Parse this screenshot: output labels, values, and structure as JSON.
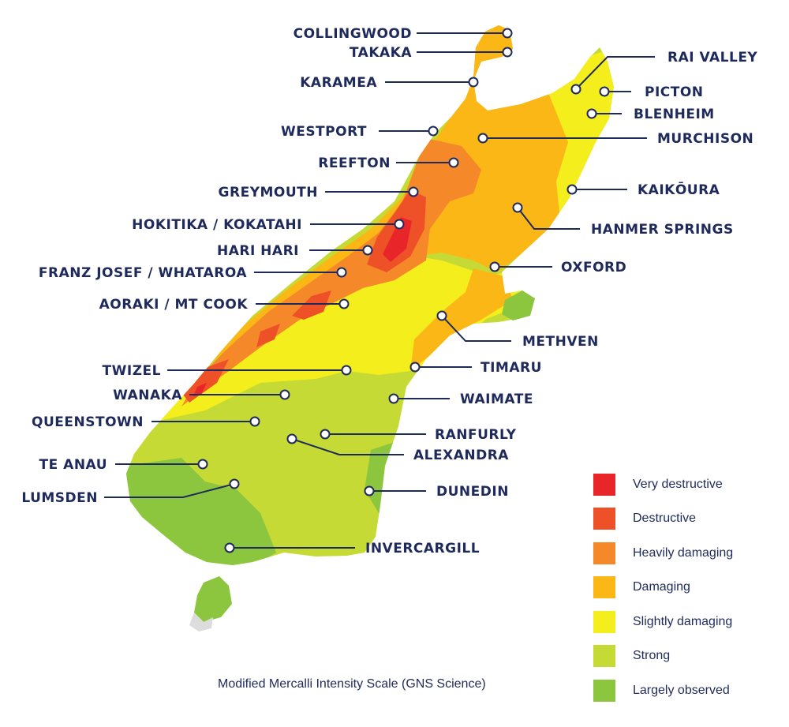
{
  "source_note": "Modified Mercalli Intensity Scale (GNS Science)",
  "legend": [
    {
      "label": "Very destructive",
      "color": "#e8262a"
    },
    {
      "label": "Destructive",
      "color": "#ee5127"
    },
    {
      "label": "Heavily damaging",
      "color": "#f5892a"
    },
    {
      "label": "Damaging",
      "color": "#fbb716"
    },
    {
      "label": "Slightly damaging",
      "color": "#f4ee1d"
    },
    {
      "label": "Strong",
      "color": "#c5da35"
    },
    {
      "label": "Largely observed",
      "color": "#8cc63f"
    }
  ],
  "places": [
    {
      "id": "collingwood",
      "name": "COLLINGWOOD"
    },
    {
      "id": "takaka",
      "name": "TAKAKA"
    },
    {
      "id": "karamea",
      "name": "KARAMEA"
    },
    {
      "id": "westport",
      "name": "WESTPORT"
    },
    {
      "id": "reefton",
      "name": "REEFTON"
    },
    {
      "id": "greymouth",
      "name": "GREYMOUTH"
    },
    {
      "id": "hokitika",
      "name": "HOKITIKA / KOKATAHI"
    },
    {
      "id": "harihari",
      "name": "HARI HARI"
    },
    {
      "id": "franzjosef",
      "name": "FRANZ JOSEF / WHATAROA"
    },
    {
      "id": "aoraki",
      "name": "AORAKI / MT COOK"
    },
    {
      "id": "twizel",
      "name": "TWIZEL"
    },
    {
      "id": "wanaka",
      "name": "WANAKA"
    },
    {
      "id": "queenstown",
      "name": "QUEENSTOWN"
    },
    {
      "id": "teanau",
      "name": "TE ANAU"
    },
    {
      "id": "lumsden",
      "name": "LUMSDEN"
    },
    {
      "id": "raivalley",
      "name": "RAI VALLEY"
    },
    {
      "id": "picton",
      "name": "PICTON"
    },
    {
      "id": "blenheim",
      "name": "BLENHEIM"
    },
    {
      "id": "murchison",
      "name": "MURCHISON"
    },
    {
      "id": "kaikoura",
      "name": "KAIKŌURA"
    },
    {
      "id": "hanmer",
      "name": "HANMER SPRINGS"
    },
    {
      "id": "oxford",
      "name": "OXFORD"
    },
    {
      "id": "methven",
      "name": "METHVEN"
    },
    {
      "id": "timaru",
      "name": "TIMARU"
    },
    {
      "id": "waimate",
      "name": "WAIMATE"
    },
    {
      "id": "ranfurly",
      "name": "RANFURLY"
    },
    {
      "id": "alexandra",
      "name": "ALEXANDRA"
    },
    {
      "id": "dunedin",
      "name": "DUNEDIN"
    },
    {
      "id": "invercargill",
      "name": "INVERCARGILL"
    }
  ]
}
